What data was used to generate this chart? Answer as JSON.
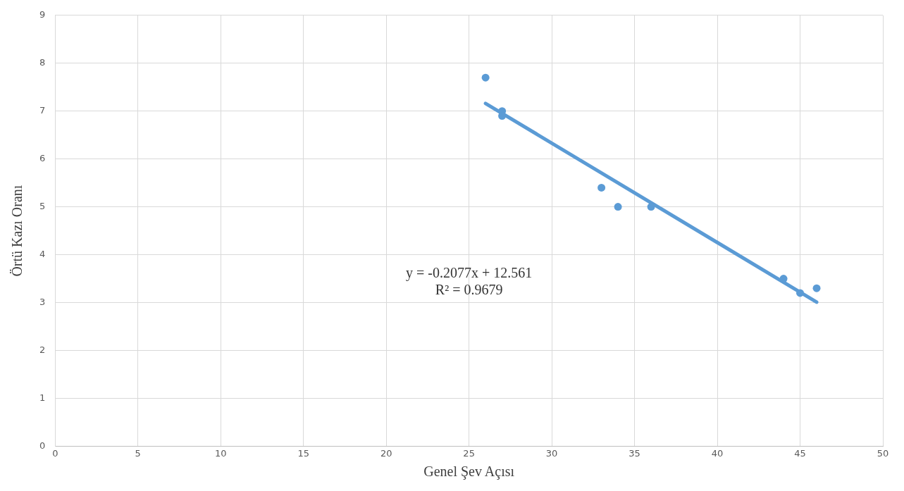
{
  "chart_data": {
    "type": "scatter",
    "xlabel": "Genel Şev Açısı",
    "ylabel": "Örtü Kazı Oranı",
    "xlim": [
      0,
      50
    ],
    "xticks": [
      0,
      5,
      10,
      15,
      20,
      25,
      30,
      35,
      40,
      45,
      50
    ],
    "ylim": [
      0,
      9
    ],
    "yticks": [
      0,
      1,
      2,
      3,
      4,
      5,
      6,
      7,
      8,
      9
    ],
    "grid": true,
    "legend": false,
    "marker": "circle",
    "series": [
      {
        "type": "scatter",
        "color": "#5b9bd5",
        "x": [
          26,
          27,
          27,
          33,
          34,
          36,
          44,
          45,
          46
        ],
        "values": [
          7.7,
          7.0,
          6.9,
          5.4,
          5.0,
          5.0,
          3.5,
          3.2,
          3.3
        ]
      },
      {
        "type": "line",
        "color": "#5b9bd5",
        "x": [
          26,
          46
        ],
        "values": [
          7.16,
          3.01
        ],
        "line_style": "solid",
        "marker": "none"
      }
    ],
    "annotations": [
      "y = -0.2077x + 12.561",
      "R² = 0.9679"
    ]
  }
}
